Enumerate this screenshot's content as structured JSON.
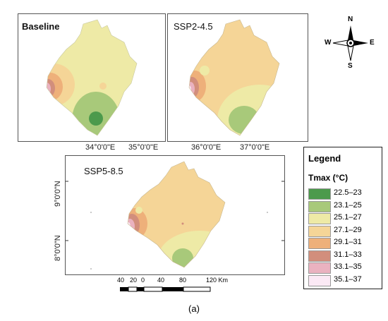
{
  "panels": [
    {
      "title": "Baseline"
    },
    {
      "title": "SSP2-4.5"
    },
    {
      "title": "SSP5-8.5"
    }
  ],
  "coords": {
    "lon_34": "34°0'0\"E",
    "lon_35": "35°0'0\"E",
    "lon_36": "36°0'0\"E",
    "lon_37": "37°0'0\"E",
    "lat_9": "9°0'0\"N",
    "lat_8": "8°0'0\"N"
  },
  "legend": {
    "title": "Legend",
    "subtitle": "Tmax (°C)",
    "items": [
      {
        "label": "22.5–23",
        "color": "#4c9a4c"
      },
      {
        "label": "23.1–25",
        "color": "#a8c97a"
      },
      {
        "label": "25.1–27",
        "color": "#eeeaa6"
      },
      {
        "label": "27.1–29",
        "color": "#f5d597"
      },
      {
        "label": "29.1–31",
        "color": "#eeb07a"
      },
      {
        "label": "31.1–33",
        "color": "#d28e7c"
      },
      {
        "label": "33.1–35",
        "color": "#eab2c0"
      },
      {
        "label": "35.1–37",
        "color": "#fbe9f5"
      }
    ]
  },
  "scale_bar": {
    "labels": [
      "40",
      "20",
      "0",
      "40",
      "80",
      "120 Km"
    ]
  },
  "compass": {
    "n": "N",
    "s": "S",
    "e": "E",
    "w": "W"
  },
  "caption": "(a)"
}
